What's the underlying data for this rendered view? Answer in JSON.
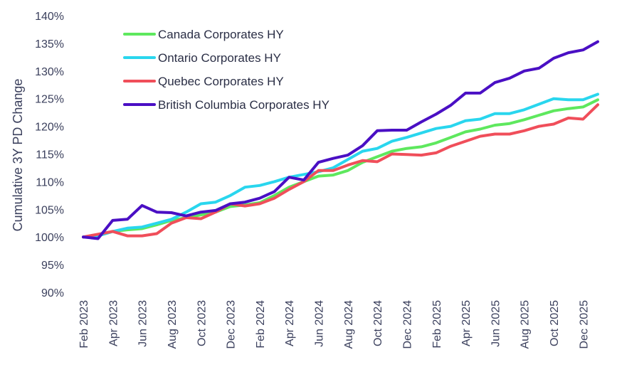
{
  "chart_data": {
    "type": "line",
    "title": "",
    "xlabel": "",
    "ylabel": "Cumulative 3Y PD Change",
    "ylim": [
      90,
      140
    ],
    "y_ticks": [
      "90%",
      "95%",
      "100%",
      "105%",
      "110%",
      "115%",
      "120%",
      "125%",
      "130%",
      "135%",
      "140%"
    ],
    "y_tick_values": [
      90,
      95,
      100,
      105,
      110,
      115,
      120,
      125,
      130,
      135,
      140
    ],
    "x": [
      "Feb 2023",
      "Mar 2023",
      "Apr 2023",
      "May 2023",
      "Jun 2023",
      "Jul 2023",
      "Aug 2023",
      "Sep 2023",
      "Oct 2023",
      "Nov 2023",
      "Dec 2023",
      "Jan 2024",
      "Feb 2024",
      "Mar 2024",
      "Apr 2024",
      "May 2024",
      "Jun 2024",
      "Jul 2024",
      "Aug 2024",
      "Sep 2024",
      "Oct 2024",
      "Nov 2024",
      "Dec 2024",
      "Jan 2025",
      "Feb 2025",
      "Mar 2025",
      "Apr 2025",
      "May 2025",
      "Jun 2025",
      "Jul 2025",
      "Aug 2025",
      "Sep 2025",
      "Oct 2025",
      "Nov 2025",
      "Dec 2025",
      "Jan 2026"
    ],
    "x_ticks": [
      "Feb 2023",
      "Apr 2023",
      "Jun 2023",
      "Aug 2023",
      "Oct 2023",
      "Dec 2023",
      "Feb 2024",
      "Apr 2024",
      "Jun 2024",
      "Aug 2024",
      "Oct 2024",
      "Dec 2024",
      "Feb 2025",
      "Apr 2025",
      "Jun 2025",
      "Aug 2025",
      "Oct 2025",
      "Dec 2025"
    ],
    "legend_position": "top-left",
    "grid": false,
    "series": [
      {
        "name": "Canada Corporates HY",
        "color": "#5ee85e",
        "values": [
          100.0,
          100.2,
          101.0,
          101.3,
          101.5,
          102.2,
          103.0,
          103.5,
          104.0,
          104.5,
          105.5,
          105.8,
          106.2,
          107.5,
          109.0,
          110.0,
          111.0,
          111.2,
          112.0,
          113.5,
          114.5,
          115.5,
          116.0,
          116.3,
          117.0,
          118.0,
          119.0,
          119.5,
          120.2,
          120.5,
          121.2,
          122.0,
          122.8,
          123.2,
          123.5,
          124.8
        ]
      },
      {
        "name": "Ontario Corporates HY",
        "color": "#29d6ee",
        "values": [
          100.0,
          100.2,
          101.0,
          101.6,
          101.8,
          102.5,
          103.2,
          104.5,
          106.0,
          106.3,
          107.5,
          109.0,
          109.3,
          110.0,
          110.8,
          111.3,
          111.8,
          112.5,
          114.0,
          115.5,
          116.0,
          117.3,
          118.0,
          118.8,
          119.6,
          120.0,
          121.0,
          121.3,
          122.3,
          122.3,
          123.0,
          124.0,
          125.0,
          124.8,
          124.8,
          125.8
        ]
      },
      {
        "name": "Quebec Corporates HY",
        "color": "#f04e5a",
        "values": [
          100.0,
          100.5,
          101.0,
          100.2,
          100.2,
          100.6,
          102.5,
          103.5,
          103.3,
          104.5,
          106.0,
          105.6,
          106.0,
          107.0,
          108.6,
          110.0,
          112.0,
          112.0,
          113.0,
          113.8,
          113.6,
          115.0,
          114.9,
          114.8,
          115.2,
          116.4,
          117.3,
          118.2,
          118.6,
          118.6,
          119.2,
          120.0,
          120.4,
          121.5,
          121.3,
          123.9
        ]
      },
      {
        "name": "British Columbia Corporates HY",
        "color": "#4a0fc4",
        "values": [
          100.0,
          99.7,
          103.0,
          103.2,
          105.7,
          104.5,
          104.4,
          103.8,
          104.5,
          104.8,
          106.0,
          106.3,
          107.0,
          108.2,
          110.8,
          110.3,
          113.5,
          114.2,
          114.8,
          116.5,
          119.2,
          119.3,
          119.3,
          120.8,
          122.2,
          123.8,
          126.0,
          126.0,
          127.9,
          128.7,
          130.0,
          130.5,
          132.3,
          133.3,
          133.8,
          135.3
        ]
      }
    ]
  }
}
